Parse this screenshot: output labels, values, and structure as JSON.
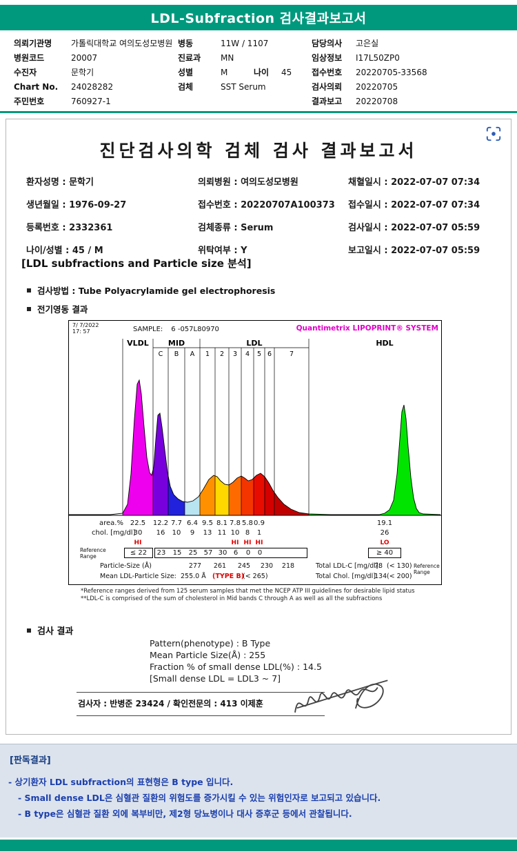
{
  "colors": {
    "teal": "#00997e",
    "interpretation_bg": "#dce3ec",
    "interpretation_heading": "#133a80",
    "interpretation_text": "#1b3fae",
    "magenta": "#e000c8",
    "flag_red": "#e00000",
    "icon_blue": "#2e5db5"
  },
  "top_bar": {
    "title": "LDL-Subfraction 검사결과보고서"
  },
  "patient_header": {
    "col1": [
      {
        "label": "의뢰기관명",
        "value": "가톨릭대학교 여의도성모병원"
      },
      {
        "label": "병원코드",
        "value": "20007"
      },
      {
        "label": "수진자",
        "value": "문학기"
      },
      {
        "label": "Chart No.",
        "value": "24028282"
      },
      {
        "label": "주민번호",
        "value": "760927-1"
      }
    ],
    "col2": [
      {
        "label": "병동",
        "value": "11W / 1107"
      },
      {
        "label": "진료과",
        "value": "MN"
      },
      {
        "label": "성별",
        "value": "M",
        "label2": "나이",
        "value2": "45"
      },
      {
        "label": "검체",
        "value": "SST Serum"
      }
    ],
    "col3": [
      {
        "label": "담당의사",
        "value": "고은실"
      },
      {
        "label": "임상정보",
        "value": "I17L50ZP0"
      },
      {
        "label": "접수번호",
        "value": "20220705-33568"
      },
      {
        "label": "검사의뢰",
        "value": "20220705"
      },
      {
        "label": "결과보고",
        "value": "20220708"
      }
    ]
  },
  "document": {
    "title": "진단검사의학 검체 검사 결과보고서",
    "patient_fields": [
      {
        "label": "환자성명",
        "value": "문학기"
      },
      {
        "label": "의뢰병원",
        "value": "여의도성모병원"
      },
      {
        "label": "채혈일시",
        "value": "2022-07-07 07:34"
      },
      {
        "label": "생년월일",
        "value": "1976-09-27"
      },
      {
        "label": "접수번호",
        "value": "20220707A100373"
      },
      {
        "label": "접수일시",
        "value": "2022-07-07 07:34"
      },
      {
        "label": "등록번호",
        "value": "2332361"
      },
      {
        "label": "검체종류",
        "value": "Serum"
      },
      {
        "label": "검사일시",
        "value": "2022-07-07 05:59"
      },
      {
        "label": "나이/성별",
        "value": "45 / M"
      },
      {
        "label": "위탁여부",
        "value": "Y"
      },
      {
        "label": "보고일시",
        "value": "2022-07-07 05:59"
      }
    ],
    "section_title": "[LDL subfractions and Particle size 분석]",
    "method_label": "검사방법",
    "method_value": "Tube Polyacrylamide gel electrophoresis",
    "electrophoresis_label": "전기영동 결과"
  },
  "chart_data": {
    "type": "area",
    "title": "Quantimetrix LIPOPRINT® SYSTEM",
    "datetime_line1": "7/ 7/2022",
    "datetime_line2": "17: 57",
    "sample_label": "SAMPLE:",
    "sample_id": "6 -057L80970",
    "groups": [
      {
        "name": "VLDL"
      },
      {
        "name": "MID"
      },
      {
        "name": "LDL"
      },
      {
        "name": "HDL"
      }
    ],
    "band_edges": [
      78,
      122,
      144,
      168,
      190,
      212,
      232,
      250,
      268,
      284,
      298,
      348,
      539
    ],
    "bands": [
      {
        "group": "VLDL",
        "label": "VLDL",
        "area_pct": "22.5",
        "chol": "30",
        "flag": "HI",
        "ref": "≤ 22",
        "color": "#ee00ee"
      },
      {
        "group": "MID",
        "label": "C",
        "area_pct": "12.2",
        "chol": "16",
        "flag": null,
        "ref": "23",
        "color": "#7700dd"
      },
      {
        "group": "MID",
        "label": "B",
        "area_pct": "7.7",
        "chol": "10",
        "flag": null,
        "ref": "15",
        "color": "#2222dd"
      },
      {
        "group": "MID",
        "label": "A",
        "area_pct": "6.4",
        "chol": "9",
        "flag": null,
        "ref": "25",
        "color": "#b8e4f2"
      },
      {
        "group": "LDL",
        "label": "1",
        "area_pct": "9.5",
        "chol": "13",
        "flag": null,
        "ref": "57",
        "color": "#ff9100",
        "particle_size": "277"
      },
      {
        "group": "LDL",
        "label": "2",
        "area_pct": "8.1",
        "chol": "11",
        "flag": null,
        "ref": "30",
        "color": "#ffd800",
        "particle_size": "261"
      },
      {
        "group": "LDL",
        "label": "3",
        "area_pct": "7.8",
        "chol": "10",
        "flag": "HI",
        "ref": "6",
        "color": "#ff6a00",
        "particle_size": "245"
      },
      {
        "group": "LDL",
        "label": "4",
        "area_pct": "5.8",
        "chol": "8",
        "flag": "HI",
        "ref": "0",
        "color": "#f53500",
        "particle_size": "230"
      },
      {
        "group": "LDL",
        "label": "5",
        "area_pct": "0.9",
        "chol": "1",
        "flag": "HI",
        "ref": "0",
        "color": "#e80c00",
        "particle_size": "218"
      },
      {
        "group": "LDL",
        "label": "6",
        "area_pct": null,
        "chol": null,
        "flag": null,
        "ref": null,
        "color": "#d40000"
      },
      {
        "group": "LDL",
        "label": "7",
        "area_pct": null,
        "chol": null,
        "flag": null,
        "ref": null,
        "color": "#c00000"
      },
      {
        "group": "HDL",
        "label": "HDL",
        "area_pct": "19.1",
        "chol": "26",
        "flag": "LO",
        "ref": "≥ 40",
        "color": "#00e400"
      }
    ],
    "row_labels": {
      "area": "area.%",
      "chol": "chol. [mg/dl]",
      "reference": "Reference Range",
      "particle": "Particle-Size (Å)"
    },
    "mean": {
      "label": "Mean LDL-Particle Size:",
      "value": "255.0 Å",
      "type": "(TYPE B)",
      "ref": "(< 265)"
    },
    "totals": {
      "ldl_label": "Total LDL-C [mg/dl]:",
      "ldl_value": "78",
      "ldl_ref": "(< 130)",
      "chol_label": "Total Chol. [mg/dl]:",
      "chol_value": "134",
      "chol_ref": "(< 200)",
      "reference_caption": "Reference Range"
    },
    "curve_points": [
      [
        0,
        1
      ],
      [
        60,
        1
      ],
      [
        78,
        3
      ],
      [
        85,
        16
      ],
      [
        90,
        60
      ],
      [
        95,
        140
      ],
      [
        99,
        190
      ],
      [
        102,
        196
      ],
      [
        105,
        176
      ],
      [
        109,
        128
      ],
      [
        113,
        84
      ],
      [
        117,
        62
      ],
      [
        120,
        58
      ],
      [
        123,
        70
      ],
      [
        126,
        110
      ],
      [
        129,
        145
      ],
      [
        132,
        148
      ],
      [
        135,
        128
      ],
      [
        139,
        95
      ],
      [
        143,
        62
      ],
      [
        147,
        42
      ],
      [
        152,
        30
      ],
      [
        158,
        24
      ],
      [
        165,
        20
      ],
      [
        172,
        19
      ],
      [
        180,
        21
      ],
      [
        188,
        27
      ],
      [
        195,
        38
      ],
      [
        203,
        52
      ],
      [
        210,
        58
      ],
      [
        215,
        56
      ],
      [
        220,
        50
      ],
      [
        226,
        45
      ],
      [
        232,
        44
      ],
      [
        238,
        48
      ],
      [
        244,
        54
      ],
      [
        250,
        57
      ],
      [
        255,
        54
      ],
      [
        260,
        50
      ],
      [
        266,
        52
      ],
      [
        272,
        58
      ],
      [
        278,
        61
      ],
      [
        284,
        56
      ],
      [
        290,
        47
      ],
      [
        296,
        36
      ],
      [
        303,
        26
      ],
      [
        312,
        16
      ],
      [
        322,
        9
      ],
      [
        334,
        4
      ],
      [
        348,
        2
      ],
      [
        380,
        1
      ],
      [
        430,
        1
      ],
      [
        450,
        1
      ],
      [
        458,
        3
      ],
      [
        465,
        8
      ],
      [
        471,
        22
      ],
      [
        476,
        60
      ],
      [
        480,
        110
      ],
      [
        483,
        150
      ],
      [
        486,
        160
      ],
      [
        489,
        140
      ],
      [
        492,
        100
      ],
      [
        496,
        55
      ],
      [
        500,
        25
      ],
      [
        504,
        10
      ],
      [
        508,
        4
      ],
      [
        514,
        2
      ],
      [
        539,
        1
      ]
    ],
    "ylim": [
      0,
      220
    ],
    "footnotes": [
      "*Reference ranges derived from 125 serum samples that met the NCEP ATP III guidelines for desirable lipid status",
      "**LDL-C is comprised of the sum of cholesterol in Mid bands C through A as well as all the subfractions"
    ]
  },
  "results": {
    "heading": "검사 결과",
    "lines": [
      "Pattern(phenotype) : B Type",
      "Mean Particle Size(Å) : 255",
      "Fraction % of small dense LDL(%) : 14.5",
      "[Small dense LDL = LDL3 ~ 7]"
    ],
    "examiner": "검사자 : 반병준 23424  /  확인전문의 : 413 이제훈"
  },
  "interpretation": {
    "heading": "[판독결과]",
    "lines": [
      "- 상기환자 LDL subfraction의 표현형은 B type 입니다.",
      "- Small dense LDL은 심혈관 질환의 위험도를 증가시킬 수 있는 위험인자로 보고되고 있습니다.",
      "- B type은 심혈관 질환 외에 복부비만, 제2형 당뇨병이나 대사 증후군 등에서 관찰됩니다."
    ]
  }
}
